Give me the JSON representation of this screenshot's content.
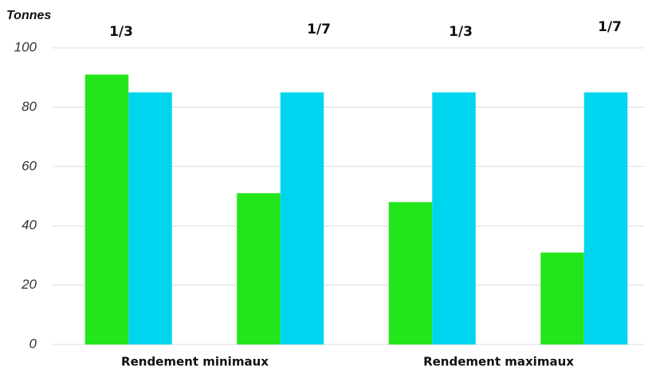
{
  "chart_data": {
    "type": "bar",
    "y_label": "Tonnes",
    "categories": [
      "1/3",
      "1/7",
      "1/3",
      "1/7"
    ],
    "group_labels": [
      "Rendement minimaux",
      "Rendement maximaux"
    ],
    "series": [
      {
        "color": "#22e61a",
        "values": [
          91,
          51,
          48,
          31
        ]
      },
      {
        "color": "#00d5f0",
        "values": [
          85,
          85,
          85,
          85
        ]
      }
    ],
    "ylim": [
      0,
      100
    ],
    "yticks": [
      0,
      20,
      40,
      60,
      80,
      100
    ],
    "grid": true
  }
}
